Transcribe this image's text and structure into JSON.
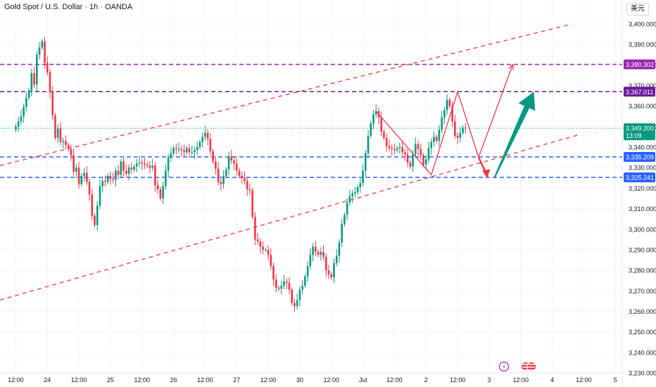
{
  "header": {
    "symbol_title": "Gold Spot / U.S. Dollar · 1h · OANDA",
    "currency_button": "美元"
  },
  "event_icons": [
    {
      "name": "lightning-icon",
      "glyph": "⚡"
    },
    {
      "name": "us-flag-events-icon",
      "glyph": "🇺🇸"
    }
  ],
  "chart_data": {
    "type": "candlestick",
    "title": "Gold Spot / U.S. Dollar · 1h · OANDA",
    "ylim": [
      3230,
      3405
    ],
    "y_ticks": [
      3230,
      3240,
      3250,
      3260,
      3270,
      3280,
      3290,
      3300,
      3310,
      3320,
      3330,
      3340,
      3350,
      3360,
      3370,
      3380,
      3390,
      3400
    ],
    "y_tick_labels": [
      "3,230.000",
      "3,240.000",
      "3,250.000",
      "3,260.000",
      "3,270.000",
      "3,280.000",
      "3,290.000",
      "3,300.000",
      "3,310.000",
      "3,320.000",
      "3,330.000",
      "3,340.000",
      "3,350.000",
      "3,360.000",
      "3,370.000",
      "3,380.000",
      "3,390.000",
      "3,400.000"
    ],
    "x_tick_labels": [
      "12:00",
      "24",
      "12:00",
      "25",
      "12:00",
      "26",
      "12:00",
      "27",
      "12:00",
      "30",
      "12:00",
      "Jul",
      "12:00",
      "2",
      "12:00",
      "3",
      "12:00",
      "4",
      "12:00",
      "5"
    ],
    "x_ticks_bars": [
      0,
      12,
      24,
      36,
      48,
      60,
      72,
      84,
      96,
      108,
      120,
      132,
      144,
      156,
      168,
      180,
      192,
      204,
      216,
      228
    ],
    "x_range_bars": [
      -6,
      229
    ],
    "candles_close": [
      3350.0,
      3352.5,
      3355.0,
      3359.5,
      3364.0,
      3367.5,
      3376.0,
      3370.5,
      3385.0,
      3388.5,
      3391.5,
      3381.0,
      3376.5,
      3367.0,
      3355.5,
      3344.5,
      3349.0,
      3342.5,
      3343.0,
      3341.0,
      3339.0,
      3336.0,
      3328.0,
      3330.0,
      3322.0,
      3326.0,
      3327.5,
      3323.0,
      3317.0,
      3306.5,
      3302.0,
      3311.5,
      3321.0,
      3323.5,
      3323.0,
      3326.0,
      3324.5,
      3324.0,
      3328.5,
      3326.5,
      3333.0,
      3328.5,
      3327.0,
      3330.0,
      3329.0,
      3330.5,
      3332.0,
      3332.5,
      3332.0,
      3331.5,
      3331.0,
      3330.0,
      3331.0,
      3321.5,
      3319.5,
      3315.0,
      3321.0,
      3328.5,
      3335.0,
      3337.0,
      3339.5,
      3339.0,
      3339.0,
      3338.5,
      3337.5,
      3339.5,
      3337.5,
      3337.5,
      3338.5,
      3340.0,
      3342.5,
      3345.0,
      3347.0,
      3344.0,
      3338.0,
      3333.0,
      3329.5,
      3323.0,
      3322.0,
      3326.0,
      3329.0,
      3335.5,
      3333.5,
      3332.0,
      3328.5,
      3326.0,
      3325.0,
      3323.5,
      3319.5,
      3319.0,
      3306.0,
      3295.0,
      3294.0,
      3291.5,
      3290.0,
      3290.0,
      3287.5,
      3282.0,
      3275.5,
      3271.5,
      3271.0,
      3272.5,
      3274.5,
      3274.0,
      3270.5,
      3264.0,
      3262.5,
      3265.5,
      3270.5,
      3272.5,
      3277.0,
      3282.0,
      3287.5,
      3291.5,
      3289.0,
      3287.5,
      3289.0,
      3286.5,
      3280.0,
      3278.0,
      3276.5,
      3283.5,
      3287.0,
      3293.5,
      3302.5,
      3307.0,
      3313.0,
      3316.0,
      3317.5,
      3318.0,
      3320.5,
      3322.5,
      3328.5,
      3337.0,
      3345.5,
      3351.5,
      3356.0,
      3357.5,
      3354.5,
      3347.5,
      3344.5,
      3340.5,
      3339.5,
      3339.0,
      3338.5,
      3339.5,
      3340.0,
      3337.5,
      3336.5,
      3332.5,
      3330.5,
      3336.5,
      3341.5,
      3339.0,
      3336.0,
      3331.5,
      3334.0,
      3339.5,
      3342.5,
      3345.0,
      3343.0,
      3348.5,
      3354.5,
      3358.0,
      3363.0,
      3360.0,
      3352.5,
      3345.5,
      3344.5,
      3347.0,
      3349.5,
      3349.2
    ],
    "candles_open": [
      3348.5,
      3350.0,
      3352.5,
      3355.0,
      3359.5,
      3364.0,
      3367.5,
      3376.0,
      3370.5,
      3385.0,
      3388.5,
      3391.5,
      3381.0,
      3376.5,
      3367.0,
      3355.5,
      3344.5,
      3349.0,
      3342.5,
      3343.0,
      3341.0,
      3339.0,
      3336.0,
      3328.0,
      3330.0,
      3322.0,
      3326.0,
      3327.5,
      3323.0,
      3317.0,
      3306.5,
      3302.0,
      3311.5,
      3321.0,
      3323.5,
      3323.0,
      3326.0,
      3324.5,
      3324.0,
      3328.5,
      3326.5,
      3333.0,
      3328.5,
      3327.0,
      3330.0,
      3329.0,
      3330.5,
      3332.0,
      3332.5,
      3332.0,
      3331.5,
      3331.0,
      3330.0,
      3331.0,
      3321.5,
      3319.5,
      3315.0,
      3321.0,
      3328.5,
      3335.0,
      3337.0,
      3339.5,
      3339.0,
      3339.0,
      3338.5,
      3337.5,
      3339.5,
      3337.5,
      3337.5,
      3338.5,
      3340.0,
      3342.5,
      3345.0,
      3347.0,
      3344.0,
      3338.0,
      3333.0,
      3329.5,
      3323.0,
      3322.0,
      3326.0,
      3329.0,
      3335.5,
      3333.5,
      3332.0,
      3328.5,
      3326.0,
      3325.0,
      3323.5,
      3319.5,
      3319.0,
      3306.0,
      3295.0,
      3294.0,
      3291.5,
      3290.0,
      3290.0,
      3287.5,
      3282.0,
      3275.5,
      3271.5,
      3271.0,
      3272.5,
      3274.5,
      3274.0,
      3270.5,
      3264.0,
      3262.5,
      3265.5,
      3270.5,
      3272.5,
      3277.0,
      3282.0,
      3287.5,
      3291.5,
      3289.0,
      3287.5,
      3289.0,
      3286.5,
      3280.0,
      3278.0,
      3276.5,
      3283.5,
      3287.0,
      3293.5,
      3302.5,
      3307.0,
      3313.0,
      3316.0,
      3317.5,
      3318.0,
      3320.5,
      3322.5,
      3328.5,
      3337.0,
      3345.5,
      3351.5,
      3356.0,
      3357.5,
      3354.5,
      3347.5,
      3344.5,
      3340.5,
      3339.5,
      3339.0,
      3338.5,
      3339.5,
      3340.0,
      3337.5,
      3336.5,
      3332.5,
      3330.5,
      3336.5,
      3341.5,
      3339.0,
      3336.0,
      3331.5,
      3334.0,
      3339.5,
      3342.5,
      3345.0,
      3343.0,
      3348.5,
      3354.5,
      3358.0,
      3363.0,
      3360.0,
      3352.5,
      3345.5,
      3344.5,
      3347.0,
      3349.5
    ],
    "horizontal_levels": [
      {
        "price": 3380.302,
        "label": "3,380.302",
        "color": "#9c27b0",
        "style": "dashed"
      },
      {
        "price": 3367.011,
        "label": "3,367.011",
        "color": "#6a1b9a",
        "style": "dashed"
      },
      {
        "price": 3335.209,
        "label": "3,335.209",
        "color": "#2962ff",
        "style": "dashed"
      },
      {
        "price": 3325.241,
        "label": "3,325.241",
        "color": "#2962ff",
        "style": "dashed"
      }
    ],
    "last_price": {
      "price": 3349.2,
      "label": "3,349.200",
      "countdown": "13:09",
      "color": "#089981"
    },
    "trend_lines": [
      {
        "from": [
          -6,
          3331.0
        ],
        "to": [
          210,
          3399.5
        ],
        "color": "#f23645",
        "style": "dashed"
      },
      {
        "from": [
          -6,
          3265.5
        ],
        "to": [
          214,
          3346.0
        ],
        "color": "#f23645",
        "style": "dashed"
      }
    ],
    "projection_path": [
      [
        137,
        3357.5
      ],
      [
        158,
        3326.5
      ],
      [
        168,
        3367.0
      ],
      [
        176,
        3335.0
      ],
      [
        189,
        3380.3
      ]
    ],
    "projection_down_arrow": [
      [
        176,
        3335.0
      ],
      [
        179,
        3325.5
      ]
    ],
    "projection_up_arrow": {
      "from": [
        182,
        3325.0
      ],
      "to": [
        197,
        3367.0
      ],
      "color": "#089981"
    },
    "colors": {
      "up": "#089981",
      "down": "#f23645",
      "grid": "#f0f3fa",
      "axis_text": "#131722"
    }
  }
}
